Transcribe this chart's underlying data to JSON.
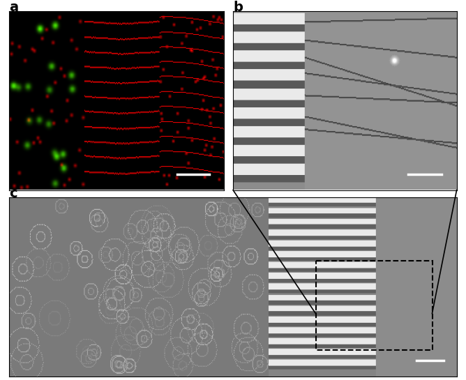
{
  "panel_labels": [
    "a",
    "b",
    "c"
  ],
  "panel_label_color": "#000000",
  "panel_label_fontsize": 14,
  "panel_label_fontweight": "bold",
  "bg_color": "#ffffff",
  "fig_width": 6.68,
  "fig_height": 5.45,
  "dpi": 100,
  "scale_bar_color": "#ffffff",
  "scale_bar_linewidth": 2.5,
  "connection_line_color": "#000000",
  "dashed_box_color": "#000000"
}
